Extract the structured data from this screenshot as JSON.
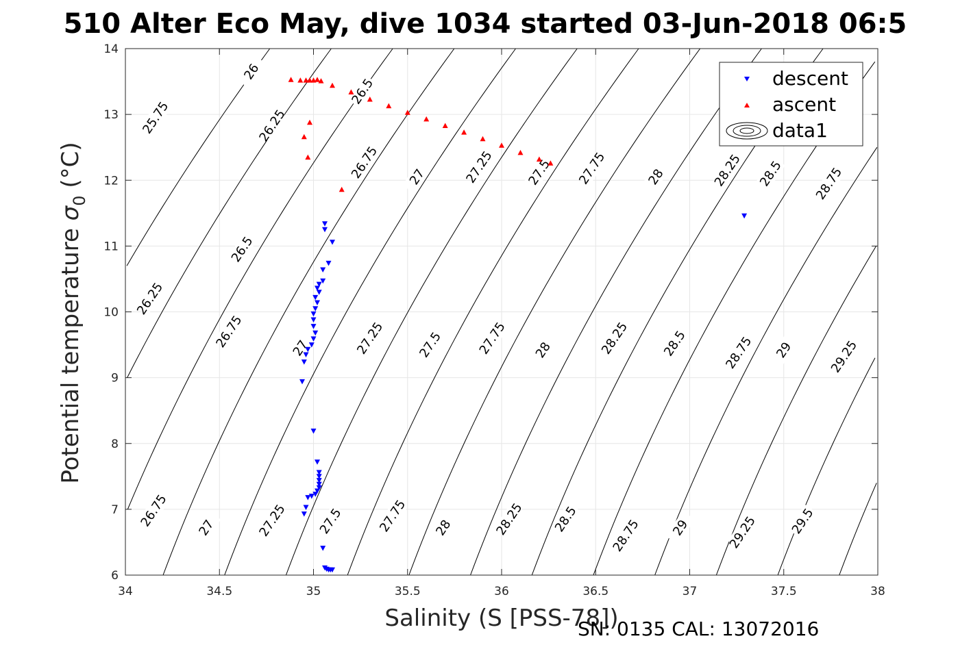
{
  "chart_data": {
    "type": "scatter",
    "title": "510 Alter Eco May, dive 1034 started 03-Jun-2018 06:5",
    "xlabel": "Salinity (S [PSS-78])",
    "ylabel": "Potential temperature",
    "ylabel_symbol": "σ",
    "ylabel_sub": "0",
    "ylabel_unit": "(°C)",
    "xlim": [
      34,
      38
    ],
    "ylim": [
      6,
      14
    ],
    "xticks": [
      "34",
      "34.5",
      "35",
      "35.5",
      "36",
      "36.5",
      "37",
      "37.5",
      "38"
    ],
    "yticks": [
      "6",
      "7",
      "8",
      "9",
      "10",
      "11",
      "12",
      "13",
      "14"
    ],
    "grid": true,
    "legend_position": "top-right",
    "legend": [
      "descent",
      "ascent",
      "data1"
    ],
    "footer": "SN: 0135  CAL: 13072016",
    "colors": {
      "descent": "#0000ff",
      "ascent": "#ff0000",
      "contour": "#000000",
      "grid": "#e6e6e6"
    },
    "contour_levels": [
      25.75,
      26,
      26.25,
      26.5,
      26.75,
      27,
      27.25,
      27.5,
      27.75,
      28,
      28.25,
      28.5,
      28.75,
      29,
      29.25,
      29.5
    ],
    "contour_labels": [
      {
        "text": "25.75",
        "x": 34.16,
        "y": 12.95
      },
      {
        "text": "26",
        "x": 34.67,
        "y": 13.65
      },
      {
        "text": "26.25",
        "x": 34.78,
        "y": 12.83
      },
      {
        "text": "26.5",
        "x": 35.26,
        "y": 13.35
      },
      {
        "text": "26.75",
        "x": 35.27,
        "y": 12.27
      },
      {
        "text": "27",
        "x": 35.55,
        "y": 12.05
      },
      {
        "text": "27.25",
        "x": 35.88,
        "y": 12.2
      },
      {
        "text": "27.5",
        "x": 36.2,
        "y": 12.12
      },
      {
        "text": "27.75",
        "x": 36.48,
        "y": 12.18
      },
      {
        "text": "28",
        "x": 36.82,
        "y": 12.05
      },
      {
        "text": "28.25",
        "x": 37.2,
        "y": 12.15
      },
      {
        "text": "28.5",
        "x": 37.43,
        "y": 12.1
      },
      {
        "text": "28.75",
        "x": 37.74,
        "y": 11.95
      },
      {
        "text": "26.5",
        "x": 34.62,
        "y": 10.95
      },
      {
        "text": "26.25",
        "x": 34.13,
        "y": 10.2
      },
      {
        "text": "26.75",
        "x": 34.55,
        "y": 9.7
      },
      {
        "text": "27",
        "x": 34.93,
        "y": 9.45
      },
      {
        "text": "27.25",
        "x": 35.3,
        "y": 9.6
      },
      {
        "text": "27.5",
        "x": 35.62,
        "y": 9.5
      },
      {
        "text": "27.75",
        "x": 35.95,
        "y": 9.6
      },
      {
        "text": "28",
        "x": 36.22,
        "y": 9.42
      },
      {
        "text": "28.25",
        "x": 36.6,
        "y": 9.6
      },
      {
        "text": "28.5",
        "x": 36.92,
        "y": 9.52
      },
      {
        "text": "28.75",
        "x": 37.26,
        "y": 9.38
      },
      {
        "text": "29",
        "x": 37.5,
        "y": 9.42
      },
      {
        "text": "29.25",
        "x": 37.82,
        "y": 9.32
      },
      {
        "text": "26.75",
        "x": 34.15,
        "y": 6.98
      },
      {
        "text": "27",
        "x": 34.43,
        "y": 6.72
      },
      {
        "text": "27.25",
        "x": 34.78,
        "y": 6.83
      },
      {
        "text": "27.5",
        "x": 35.09,
        "y": 6.82
      },
      {
        "text": "27.75",
        "x": 35.42,
        "y": 6.9
      },
      {
        "text": "28",
        "x": 35.69,
        "y": 6.72
      },
      {
        "text": "28.25",
        "x": 36.04,
        "y": 6.85
      },
      {
        "text": "28.5",
        "x": 36.34,
        "y": 6.85
      },
      {
        "text": "28.75",
        "x": 36.66,
        "y": 6.6
      },
      {
        "text": "29",
        "x": 36.95,
        "y": 6.72
      },
      {
        "text": "29.25",
        "x": 37.28,
        "y": 6.65
      },
      {
        "text": "29.5",
        "x": 37.6,
        "y": 6.82
      }
    ],
    "series": [
      {
        "name": "descent",
        "marker": "triangle-down",
        "color": "#0000ff",
        "points": [
          [
            37.29,
            11.46
          ],
          [
            35.06,
            11.34
          ],
          [
            35.06,
            11.25
          ],
          [
            35.1,
            11.06
          ],
          [
            35.08,
            10.74
          ],
          [
            35.05,
            10.64
          ],
          [
            35.05,
            10.47
          ],
          [
            35.03,
            10.42
          ],
          [
            35.02,
            10.36
          ],
          [
            35.03,
            10.3
          ],
          [
            35.01,
            10.22
          ],
          [
            35.02,
            10.14
          ],
          [
            35.01,
            10.05
          ],
          [
            35.0,
            9.97
          ],
          [
            35.0,
            9.88
          ],
          [
            35.0,
            9.78
          ],
          [
            35.01,
            9.68
          ],
          [
            35.0,
            9.59
          ],
          [
            34.99,
            9.5
          ],
          [
            34.97,
            9.43
          ],
          [
            34.96,
            9.35
          ],
          [
            34.95,
            9.24
          ],
          [
            34.94,
            8.94
          ],
          [
            35.0,
            8.19
          ],
          [
            35.02,
            7.72
          ],
          [
            35.03,
            7.56
          ],
          [
            35.03,
            7.5
          ],
          [
            35.03,
            7.44
          ],
          [
            35.03,
            7.38
          ],
          [
            35.03,
            7.33
          ],
          [
            35.02,
            7.28
          ],
          [
            35.01,
            7.23
          ],
          [
            34.99,
            7.2
          ],
          [
            34.97,
            7.18
          ],
          [
            34.96,
            7.03
          ],
          [
            34.95,
            6.93
          ],
          [
            35.05,
            6.41
          ],
          [
            35.06,
            6.11
          ],
          [
            35.07,
            6.09
          ],
          [
            35.08,
            6.08
          ],
          [
            35.09,
            6.08
          ],
          [
            35.1,
            6.08
          ]
        ]
      },
      {
        "name": "ascent",
        "marker": "triangle-up",
        "color": "#ff0000",
        "points": [
          [
            34.88,
            13.53
          ],
          [
            34.93,
            13.52
          ],
          [
            34.96,
            13.52
          ],
          [
            34.98,
            13.52
          ],
          [
            35.0,
            13.52
          ],
          [
            35.02,
            13.53
          ],
          [
            34.98,
            12.88
          ],
          [
            34.95,
            12.66
          ],
          [
            34.97,
            12.35
          ],
          [
            35.15,
            11.86
          ],
          [
            35.04,
            13.51
          ],
          [
            35.1,
            13.44
          ],
          [
            35.2,
            13.34
          ],
          [
            35.3,
            13.23
          ],
          [
            35.4,
            13.13
          ],
          [
            35.5,
            13.03
          ],
          [
            35.6,
            12.93
          ],
          [
            35.7,
            12.83
          ],
          [
            35.8,
            12.73
          ],
          [
            35.9,
            12.63
          ],
          [
            36.0,
            12.53
          ],
          [
            36.1,
            12.42
          ],
          [
            36.2,
            12.32
          ],
          [
            36.26,
            12.26
          ]
        ]
      }
    ]
  }
}
